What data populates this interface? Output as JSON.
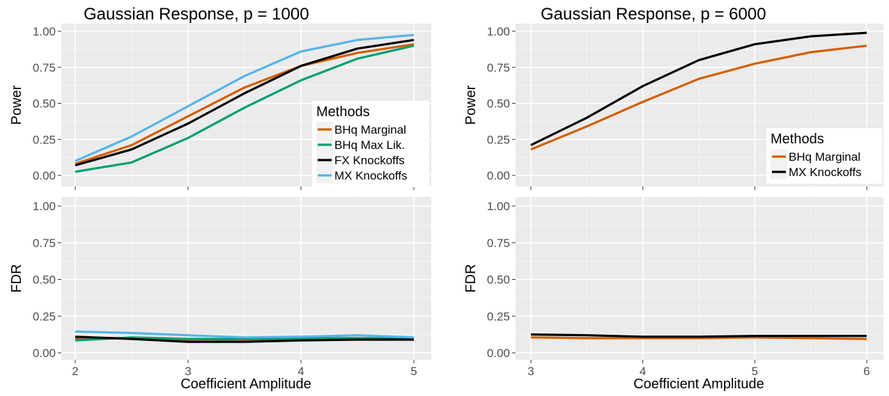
{
  "colors": {
    "panel_background": "#ebebeb",
    "grid_major": "#ffffff",
    "grid_minor": "#f5f5f5",
    "tick_text": "#4d4d4d",
    "legend_background": "#ffffff",
    "legend_key_background": "#f2f2f2"
  },
  "chart_data": [
    {
      "type": "line",
      "title": "Gaussian Response, p = 1000",
      "xlabel": "",
      "ylabel": "Power",
      "x": [
        2,
        2.5,
        3,
        3.5,
        4,
        4.5,
        5
      ],
      "x_ticks": [
        2,
        3,
        4,
        5
      ],
      "x_tick_labels": [
        "",
        "",
        "",
        ""
      ],
      "xlim": [
        2,
        5
      ],
      "ylim": [
        0,
        1
      ],
      "y_ticks": [
        0,
        0.25,
        0.5,
        0.75,
        1
      ],
      "y_tick_labels": [
        "0.00",
        "0.25",
        "0.50",
        "0.75",
        "1.00"
      ],
      "grid": true,
      "legend": {
        "title": "Methods",
        "position": "bottom-right"
      },
      "series": [
        {
          "name": "BHq Marginal",
          "color": "#d55e00",
          "values": [
            0.08,
            0.21,
            0.41,
            0.61,
            0.76,
            0.85,
            0.91
          ]
        },
        {
          "name": "BHq Max Lik.",
          "color": "#009e73",
          "values": [
            0.025,
            0.09,
            0.26,
            0.47,
            0.66,
            0.81,
            0.9
          ]
        },
        {
          "name": "FX Knockoffs",
          "color": "#000000",
          "values": [
            0.07,
            0.18,
            0.36,
            0.57,
            0.76,
            0.88,
            0.94
          ]
        },
        {
          "name": "MX Knockoffs",
          "color": "#56b4e9",
          "values": [
            0.1,
            0.27,
            0.48,
            0.69,
            0.86,
            0.94,
            0.975
          ]
        }
      ]
    },
    {
      "type": "line",
      "title": "Gaussian Response, p = 6000",
      "xlabel": "",
      "ylabel": "Power",
      "x": [
        3,
        3.5,
        4,
        4.5,
        5,
        5.5,
        6
      ],
      "x_ticks": [
        3,
        4,
        5,
        6
      ],
      "x_tick_labels": [
        "",
        "",
        "",
        ""
      ],
      "xlim": [
        3,
        6
      ],
      "ylim": [
        0,
        1
      ],
      "y_ticks": [
        0,
        0.25,
        0.5,
        0.75,
        1
      ],
      "y_tick_labels": [
        "0.00",
        "0.25",
        "0.50",
        "0.75",
        "1.00"
      ],
      "grid": true,
      "legend": {
        "title": "Methods",
        "position": "bottom-right"
      },
      "series": [
        {
          "name": "BHq Marginal",
          "color": "#d55e00",
          "values": [
            0.18,
            0.34,
            0.51,
            0.67,
            0.775,
            0.855,
            0.9
          ]
        },
        {
          "name": "MX Knockoffs",
          "color": "#000000",
          "values": [
            0.21,
            0.4,
            0.62,
            0.8,
            0.91,
            0.965,
            0.99
          ]
        }
      ]
    },
    {
      "type": "line",
      "title": "",
      "xlabel": "Coefficient Amplitude",
      "ylabel": "FDR",
      "x": [
        2,
        2.5,
        3,
        3.5,
        4,
        4.5,
        5
      ],
      "x_ticks": [
        2,
        3,
        4,
        5
      ],
      "x_tick_labels": [
        "2",
        "3",
        "4",
        "5"
      ],
      "xlim": [
        2,
        5
      ],
      "ylim": [
        0,
        1
      ],
      "y_ticks": [
        0,
        0.25,
        0.5,
        0.75,
        1
      ],
      "y_tick_labels": [
        "0.00",
        "0.25",
        "0.50",
        "0.75",
        "1.00"
      ],
      "grid": true,
      "series": [
        {
          "name": "BHq Marginal",
          "color": "#d55e00",
          "values": [
            0.1,
            0.1,
            0.09,
            0.09,
            0.095,
            0.095,
            0.095
          ]
        },
        {
          "name": "BHq Max Lik.",
          "color": "#009e73",
          "values": [
            0.085,
            0.105,
            0.095,
            0.095,
            0.1,
            0.1,
            0.1
          ]
        },
        {
          "name": "FX Knockoffs",
          "color": "#000000",
          "values": [
            0.11,
            0.095,
            0.075,
            0.075,
            0.085,
            0.09,
            0.09
          ]
        },
        {
          "name": "MX Knockoffs",
          "color": "#56b4e9",
          "values": [
            0.145,
            0.135,
            0.12,
            0.105,
            0.11,
            0.12,
            0.105
          ]
        }
      ]
    },
    {
      "type": "line",
      "title": "",
      "xlabel": "Coefficient Amplitude",
      "ylabel": "FDR",
      "x": [
        3,
        3.5,
        4,
        4.5,
        5,
        5.5,
        6
      ],
      "x_ticks": [
        3,
        4,
        5,
        6
      ],
      "x_tick_labels": [
        "3",
        "4",
        "5",
        "6"
      ],
      "xlim": [
        3,
        6
      ],
      "ylim": [
        0,
        1
      ],
      "y_ticks": [
        0,
        0.25,
        0.5,
        0.75,
        1
      ],
      "y_tick_labels": [
        "0.00",
        "0.25",
        "0.50",
        "0.75",
        "1.00"
      ],
      "grid": true,
      "series": [
        {
          "name": "BHq Marginal",
          "color": "#d55e00",
          "values": [
            0.105,
            0.1,
            0.1,
            0.1,
            0.105,
            0.1,
            0.095
          ]
        },
        {
          "name": "MX Knockoffs",
          "color": "#000000",
          "values": [
            0.125,
            0.12,
            0.11,
            0.11,
            0.115,
            0.115,
            0.115
          ]
        }
      ]
    }
  ]
}
